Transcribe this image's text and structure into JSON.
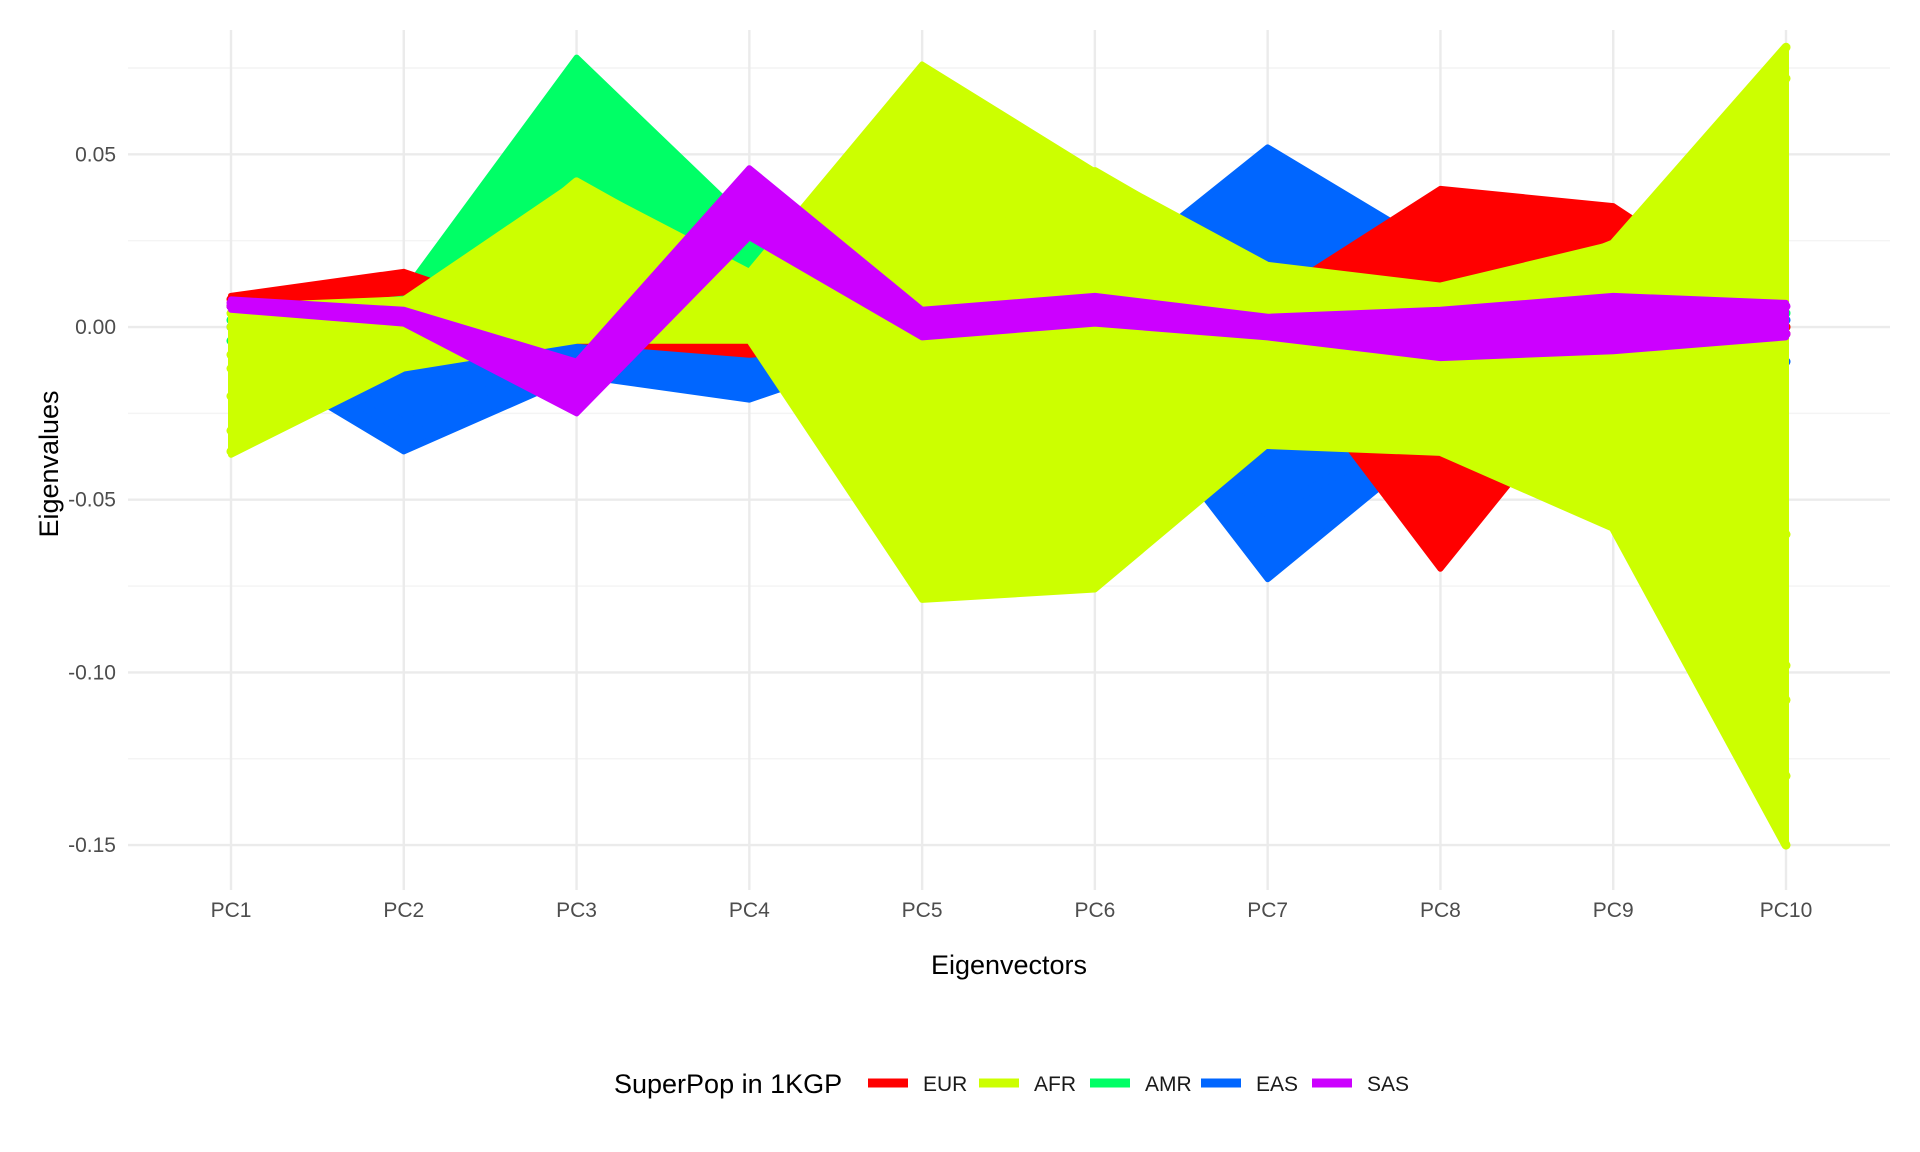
{
  "chart_data": {
    "type": "line",
    "xlabel": "Eigenvectors",
    "ylabel": "Eigenvalues",
    "categories": [
      "PC1",
      "PC2",
      "PC3",
      "PC4",
      "PC5",
      "PC6",
      "PC7",
      "PC8",
      "PC9",
      "PC10"
    ],
    "yticks": [
      {
        "value": 0.05,
        "label": "0.05"
      },
      {
        "value": 0.0,
        "label": "0.00"
      },
      {
        "value": -0.05,
        "label": "-0.05"
      },
      {
        "value": -0.1,
        "label": "-0.10"
      },
      {
        "value": -0.15,
        "label": "-0.15"
      }
    ],
    "ylim": [
      -0.163,
      0.086
    ],
    "grid": true,
    "legend": {
      "title": "SuperPop in 1KGP",
      "position": "bottom",
      "entries": [
        "EUR",
        "AFR",
        "AMR",
        "EAS",
        "SAS"
      ]
    },
    "colors": {
      "EUR": "#ff0000",
      "AFR": "#ccff00",
      "AMR": "#00ff66",
      "EAS": "#0066ff",
      "SAS": "#cc00ff"
    },
    "series": [
      {
        "name": "AMR",
        "envelope": {
          "upper": [
            0.004,
            0.01,
            0.078,
            0.03,
            0.004,
            -0.002,
            0.012,
            0.025,
            0.01,
            0.008
          ],
          "lower": [
            -0.01,
            -0.024,
            -0.002,
            0.0,
            -0.006,
            -0.006,
            -0.018,
            -0.03,
            -0.05,
            -0.002
          ]
        },
        "lines": [
          [
            0.002,
            -0.01,
            0.04,
            0.018,
            0.0,
            -0.004,
            0.004,
            0.02,
            0.002,
            0.004
          ],
          [
            -0.004,
            -0.018,
            0.01,
            0.008,
            -0.002,
            -0.005,
            -0.01,
            -0.02,
            -0.042,
            0.0
          ]
        ]
      },
      {
        "name": "EAS",
        "envelope": {
          "upper": [
            0.008,
            0.004,
            0.0,
            -0.004,
            0.006,
            0.012,
            0.052,
            0.022,
            0.01,
            0.004
          ],
          "lower": [
            -0.006,
            -0.036,
            -0.014,
            -0.021,
            -0.004,
            -0.008,
            -0.073,
            -0.032,
            -0.045,
            -0.02
          ]
        },
        "lines": [
          [
            0.006,
            -0.028,
            -0.01,
            -0.016,
            0.002,
            0.004,
            0.024,
            0.018,
            0.006,
            0.002
          ],
          [
            0.0,
            -0.03,
            -0.006,
            -0.01,
            0.0,
            -0.002,
            -0.054,
            -0.026,
            -0.04,
            -0.01
          ]
        ]
      },
      {
        "name": "EUR",
        "envelope": {
          "upper": [
            0.009,
            0.016,
            -0.001,
            -0.004,
            0.008,
            0.023,
            0.008,
            0.04,
            0.035,
            0.002
          ],
          "lower": [
            0.005,
            0.01,
            -0.004,
            -0.008,
            -0.005,
            -0.017,
            -0.004,
            -0.07,
            -0.008,
            -0.004
          ]
        },
        "lines": [
          [
            0.008,
            0.013,
            -0.002,
            -0.006,
            0.001,
            -0.014,
            0.006,
            0.036,
            0.02,
            0.0
          ],
          [
            0.006,
            0.011,
            -0.003,
            -0.007,
            -0.004,
            0.02,
            0.002,
            -0.034,
            0.03,
            -0.002
          ]
        ]
      },
      {
        "name": "AFR",
        "envelope": {
          "upper": [
            0.006,
            0.008,
            0.042,
            0.016,
            0.076,
            0.045,
            0.018,
            0.012,
            0.024,
            0.081
          ],
          "lower": [
            -0.037,
            -0.012,
            -0.004,
            -0.004,
            -0.079,
            -0.076,
            -0.034,
            -0.036,
            -0.058,
            -0.15
          ]
        },
        "lines": [
          [
            -0.036,
            0.0,
            0.042,
            0.014,
            0.046,
            -0.03,
            -0.034,
            -0.036,
            -0.058,
            -0.15
          ],
          [
            -0.03,
            0.004,
            0.03,
            0.01,
            -0.034,
            0.045,
            0.016,
            0.004,
            0.024,
            0.081
          ],
          [
            0.004,
            -0.006,
            0.012,
            0.004,
            -0.06,
            -0.075,
            -0.028,
            -0.018,
            -0.05,
            -0.13
          ],
          [
            -0.008,
            0.002,
            0.028,
            0.012,
            0.04,
            0.02,
            0.01,
            0.006,
            0.012,
            0.072
          ],
          [
            -0.02,
            -0.004,
            0.02,
            0.008,
            -0.07,
            -0.06,
            -0.02,
            -0.012,
            -0.04,
            -0.108
          ],
          [
            0.0,
            0.006,
            0.005,
            0.002,
            0.024,
            -0.04,
            -0.024,
            -0.022,
            -0.03,
            -0.06
          ],
          [
            -0.012,
            -0.008,
            0.036,
            0.014,
            -0.078,
            -0.068,
            -0.03,
            -0.03,
            -0.046,
            -0.098
          ]
        ]
      },
      {
        "name": "SAS",
        "envelope": {
          "upper": [
            0.008,
            0.005,
            -0.01,
            0.046,
            0.005,
            0.009,
            0.003,
            0.005,
            0.009,
            0.007
          ],
          "lower": [
            0.005,
            0.001,
            -0.025,
            0.026,
            -0.003,
            0.001,
            -0.003,
            -0.009,
            -0.007,
            -0.003
          ]
        },
        "lines": [
          [
            0.007,
            0.003,
            -0.024,
            0.045,
            0.004,
            0.008,
            0.002,
            0.004,
            0.008,
            0.006
          ],
          [
            0.006,
            0.002,
            -0.012,
            0.028,
            -0.002,
            0.002,
            -0.002,
            -0.008,
            -0.006,
            -0.002
          ]
        ]
      }
    ]
  }
}
